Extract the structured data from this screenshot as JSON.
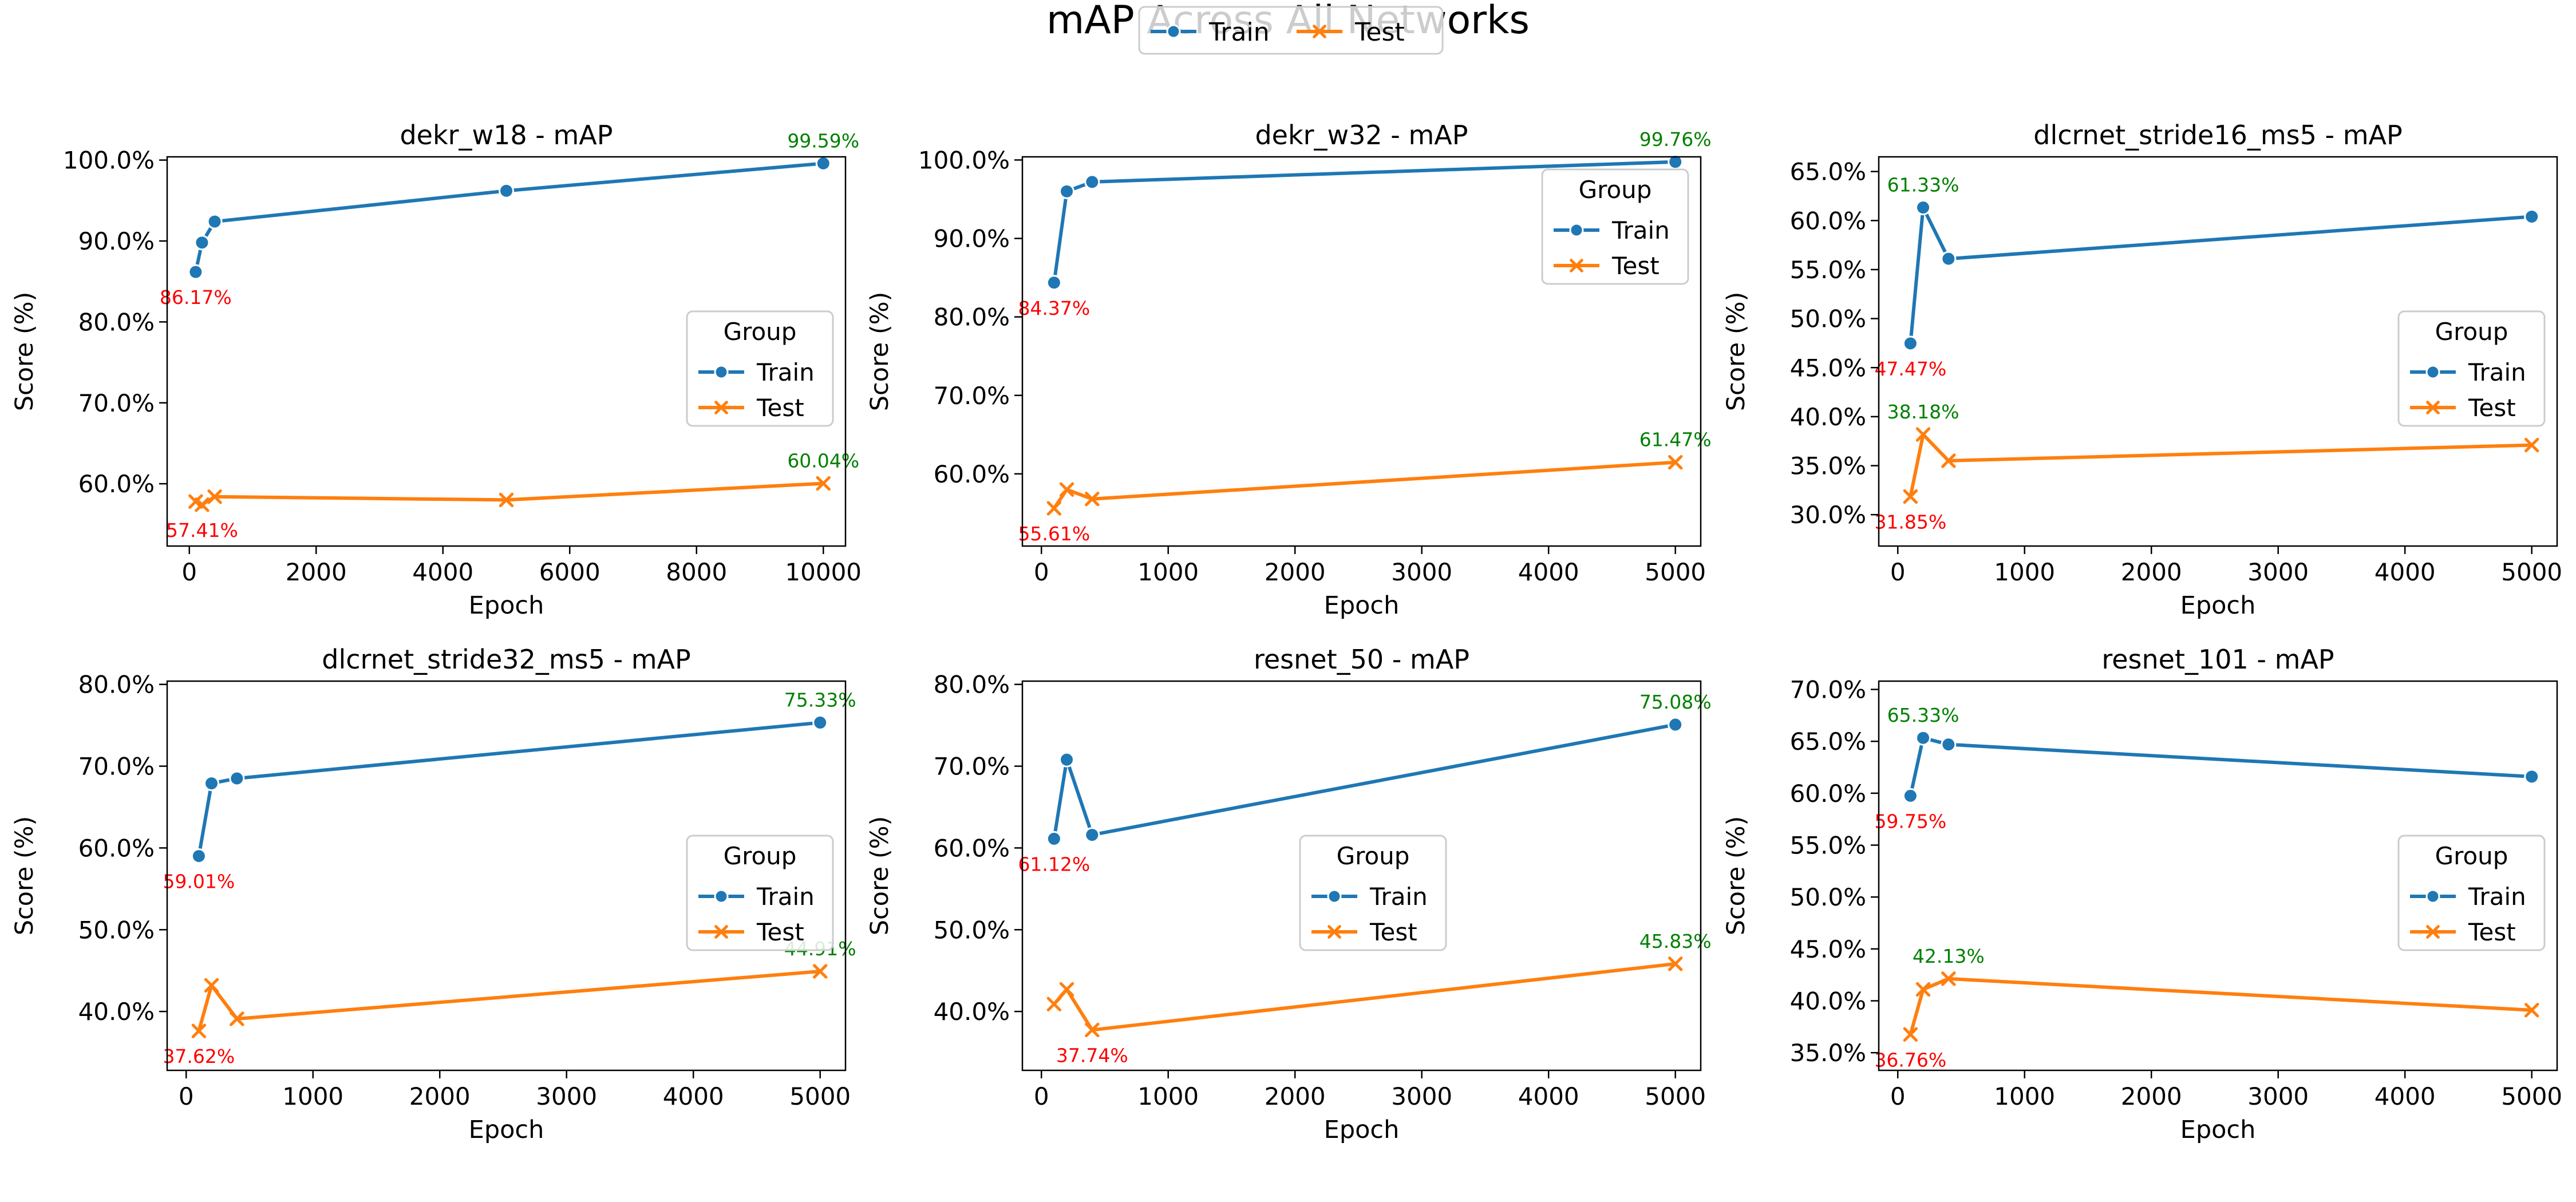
{
  "figure": {
    "title": "mAP Across All Networks",
    "legend": {
      "placement": "top-center",
      "entries": [
        "Train",
        "Test"
      ]
    }
  },
  "colors": {
    "train": "#1f77b4",
    "test": "#ff7f0e",
    "max_label": "#008000",
    "min_label": "#ff0000",
    "axis": "#000000",
    "legend_frame": "#cccccc"
  },
  "chart_data": [
    {
      "type": "line",
      "title": "dekr_w18 - mAP",
      "xlabel": "Epoch",
      "ylabel": "Score (%)",
      "xlim": [
        -350,
        10350
      ],
      "ylim": [
        52.3,
        100.4
      ],
      "xticks": [
        0,
        2000,
        4000,
        6000,
        8000,
        10000
      ],
      "yticks": [
        60,
        70,
        80,
        90,
        100
      ],
      "legend": {
        "title": "Group",
        "placement": "center-right"
      },
      "series": [
        {
          "name": "Train",
          "marker": "circle",
          "x": [
            100,
            200,
            400,
            5000,
            10000
          ],
          "y": [
            86.17,
            89.8,
            92.4,
            96.2,
            99.59
          ]
        },
        {
          "name": "Test",
          "marker": "x",
          "x": [
            100,
            200,
            400,
            5000,
            10000
          ],
          "y": [
            57.8,
            57.41,
            58.4,
            58.0,
            60.04
          ]
        }
      ],
      "annotations": [
        {
          "series": "Train",
          "kind": "max",
          "x": 10000,
          "y": 99.59,
          "text": "99.59%"
        },
        {
          "series": "Train",
          "kind": "min",
          "x": 100,
          "y": 86.17,
          "text": "86.17%"
        },
        {
          "series": "Test",
          "kind": "max",
          "x": 10000,
          "y": 60.04,
          "text": "60.04%"
        },
        {
          "series": "Test",
          "kind": "min",
          "x": 200,
          "y": 57.41,
          "text": "57.41%"
        }
      ]
    },
    {
      "type": "line",
      "title": "dekr_w32 - mAP",
      "xlabel": "Epoch",
      "ylabel": "Score (%)",
      "xlim": [
        -150,
        5200
      ],
      "ylim": [
        50.8,
        100.4
      ],
      "xticks": [
        0,
        1000,
        2000,
        3000,
        4000,
        5000
      ],
      "yticks": [
        60,
        70,
        80,
        90,
        100
      ],
      "legend": {
        "title": "Group",
        "placement": "upper-right"
      },
      "series": [
        {
          "name": "Train",
          "marker": "circle",
          "x": [
            100,
            200,
            400,
            5000
          ],
          "y": [
            84.37,
            96.0,
            97.2,
            99.76
          ]
        },
        {
          "name": "Test",
          "marker": "x",
          "x": [
            100,
            200,
            400,
            5000
          ],
          "y": [
            55.61,
            58.0,
            56.8,
            61.47
          ]
        }
      ],
      "annotations": [
        {
          "series": "Train",
          "kind": "max",
          "x": 5000,
          "y": 99.76,
          "text": "99.76%"
        },
        {
          "series": "Train",
          "kind": "min",
          "x": 100,
          "y": 84.37,
          "text": "84.37%"
        },
        {
          "series": "Test",
          "kind": "max",
          "x": 5000,
          "y": 61.47,
          "text": "61.47%"
        },
        {
          "series": "Test",
          "kind": "min",
          "x": 100,
          "y": 55.61,
          "text": "55.61%"
        }
      ]
    },
    {
      "type": "line",
      "title": "dlcrnet_stride16_ms5 - mAP",
      "xlabel": "Epoch",
      "ylabel": "Score (%)",
      "xlim": [
        -150,
        5200
      ],
      "ylim": [
        26.8,
        66.5
      ],
      "xticks": [
        0,
        1000,
        2000,
        3000,
        4000,
        5000
      ],
      "yticks": [
        30,
        35,
        40,
        45,
        50,
        55,
        60,
        65
      ],
      "legend": {
        "title": "Group",
        "placement": "center-right"
      },
      "series": [
        {
          "name": "Train",
          "marker": "circle",
          "x": [
            100,
            200,
            400,
            5000
          ],
          "y": [
            47.47,
            61.33,
            56.1,
            60.4
          ]
        },
        {
          "name": "Test",
          "marker": "x",
          "x": [
            100,
            200,
            400,
            5000
          ],
          "y": [
            31.85,
            38.18,
            35.5,
            37.1
          ]
        }
      ],
      "annotations": [
        {
          "series": "Train",
          "kind": "max",
          "x": 200,
          "y": 61.33,
          "text": "61.33%"
        },
        {
          "series": "Train",
          "kind": "min",
          "x": 100,
          "y": 47.47,
          "text": "47.47%"
        },
        {
          "series": "Test",
          "kind": "max",
          "x": 200,
          "y": 38.18,
          "text": "38.18%"
        },
        {
          "series": "Test",
          "kind": "min",
          "x": 100,
          "y": 31.85,
          "text": "31.85%"
        }
      ]
    },
    {
      "type": "line",
      "title": "dlcrnet_stride32_ms5 - mAP",
      "xlabel": "Epoch",
      "ylabel": "Score (%)",
      "xlim": [
        -150,
        5200
      ],
      "ylim": [
        32.8,
        80.4
      ],
      "xticks": [
        0,
        1000,
        2000,
        3000,
        4000,
        5000
      ],
      "yticks": [
        40,
        50,
        60,
        70,
        80
      ],
      "legend": {
        "title": "Group",
        "placement": "center-right"
      },
      "series": [
        {
          "name": "Train",
          "marker": "circle",
          "x": [
            100,
            200,
            400,
            5000
          ],
          "y": [
            59.01,
            67.9,
            68.5,
            75.33
          ]
        },
        {
          "name": "Test",
          "marker": "x",
          "x": [
            100,
            200,
            400,
            5000
          ],
          "y": [
            37.62,
            43.2,
            39.1,
            44.91
          ]
        }
      ],
      "annotations": [
        {
          "series": "Train",
          "kind": "max",
          "x": 5000,
          "y": 75.33,
          "text": "75.33%"
        },
        {
          "series": "Train",
          "kind": "min",
          "x": 100,
          "y": 59.01,
          "text": "59.01%"
        },
        {
          "series": "Test",
          "kind": "max",
          "x": 5000,
          "y": 44.91,
          "text": "44.91%"
        },
        {
          "series": "Test",
          "kind": "min",
          "x": 100,
          "y": 37.62,
          "text": "37.62%"
        }
      ]
    },
    {
      "type": "line",
      "title": "resnet_50 - mAP",
      "xlabel": "Epoch",
      "ylabel": "Score (%)",
      "xlim": [
        -150,
        5200
      ],
      "ylim": [
        32.8,
        80.4
      ],
      "xticks": [
        0,
        1000,
        2000,
        3000,
        4000,
        5000
      ],
      "yticks": [
        40,
        50,
        60,
        70,
        80
      ],
      "legend": {
        "title": "Group",
        "placement": "center"
      },
      "series": [
        {
          "name": "Train",
          "marker": "circle",
          "x": [
            100,
            200,
            400,
            5000
          ],
          "y": [
            61.12,
            70.8,
            61.6,
            75.08
          ]
        },
        {
          "name": "Test",
          "marker": "x",
          "x": [
            100,
            200,
            400,
            5000
          ],
          "y": [
            40.9,
            42.7,
            37.74,
            45.83
          ]
        }
      ],
      "annotations": [
        {
          "series": "Train",
          "kind": "max",
          "x": 5000,
          "y": 75.08,
          "text": "75.08%"
        },
        {
          "series": "Train",
          "kind": "min",
          "x": 100,
          "y": 61.12,
          "text": "61.12%"
        },
        {
          "series": "Test",
          "kind": "max",
          "x": 5000,
          "y": 45.83,
          "text": "45.83%"
        },
        {
          "series": "Test",
          "kind": "min",
          "x": 400,
          "y": 37.74,
          "text": "37.74%"
        }
      ]
    },
    {
      "type": "line",
      "title": "resnet_101 - mAP",
      "xlabel": "Epoch",
      "ylabel": "Score (%)",
      "xlim": [
        -150,
        5200
      ],
      "ylim": [
        33.3,
        70.8
      ],
      "xticks": [
        0,
        1000,
        2000,
        3000,
        4000,
        5000
      ],
      "yticks": [
        35,
        40,
        45,
        50,
        55,
        60,
        65,
        70
      ],
      "legend": {
        "title": "Group",
        "placement": "center-right"
      },
      "series": [
        {
          "name": "Train",
          "marker": "circle",
          "x": [
            100,
            200,
            400,
            5000
          ],
          "y": [
            59.75,
            65.33,
            64.7,
            61.6
          ]
        },
        {
          "name": "Test",
          "marker": "x",
          "x": [
            100,
            200,
            400,
            5000
          ],
          "y": [
            36.76,
            41.1,
            42.13,
            39.1
          ]
        }
      ],
      "annotations": [
        {
          "series": "Train",
          "kind": "max",
          "x": 200,
          "y": 65.33,
          "text": "65.33%"
        },
        {
          "series": "Train",
          "kind": "min",
          "x": 100,
          "y": 59.75,
          "text": "59.75%"
        },
        {
          "series": "Test",
          "kind": "max",
          "x": 400,
          "y": 42.13,
          "text": "42.13%"
        },
        {
          "series": "Test",
          "kind": "min",
          "x": 100,
          "y": 36.76,
          "text": "36.76%"
        }
      ]
    }
  ]
}
